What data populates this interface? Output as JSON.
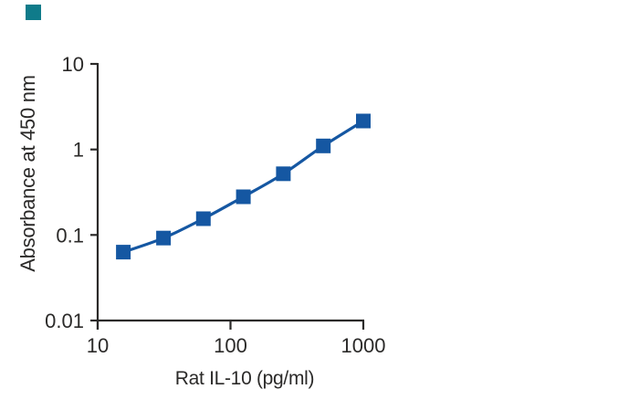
{
  "brand": {
    "accent_square_color": "#0F7B8A"
  },
  "colors": {
    "series_blue": "#1557A2",
    "axis": "#2B2A29",
    "background": "#FFFFFF"
  },
  "chart_data": {
    "type": "line",
    "title": "",
    "xlabel": "Rat IL-10 (pg/ml)",
    "ylabel": "Absorbance at 450 nm",
    "x_scale": "log",
    "y_scale": "log",
    "xlim": [
      10,
      1000
    ],
    "ylim": [
      0.01,
      10
    ],
    "grid": false,
    "legend": false,
    "marker": "filled-square",
    "x_ticks": [
      {
        "value": 10,
        "label": "10"
      },
      {
        "value": 100,
        "label": "100"
      },
      {
        "value": 1000,
        "label": "1000"
      }
    ],
    "y_ticks": [
      {
        "value": 10,
        "label": "10"
      },
      {
        "value": 1,
        "label": "1"
      },
      {
        "value": 0.1,
        "label": "0.1"
      },
      {
        "value": 0.01,
        "label": "0.01"
      }
    ],
    "series": [
      {
        "x": [
          15.6,
          31.3,
          62.5,
          125,
          250,
          500,
          1000
        ],
        "y": [
          0.063,
          0.092,
          0.155,
          0.28,
          0.52,
          1.1,
          2.15
        ]
      }
    ]
  }
}
